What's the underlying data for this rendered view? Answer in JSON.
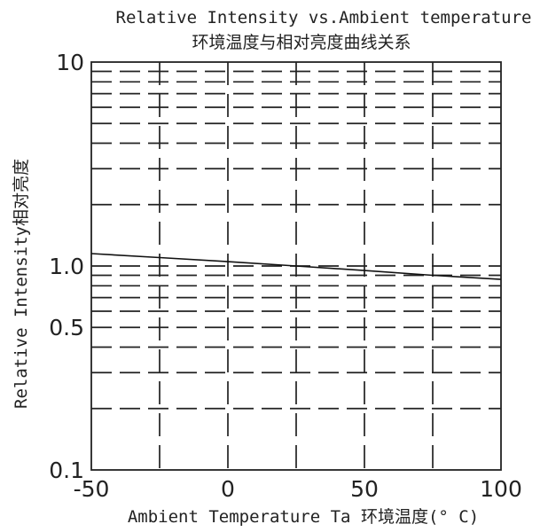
{
  "chart_data": {
    "type": "line",
    "title": "Relative Intensity vs.Ambient temperature",
    "subtitle": "环境温度与相对亮度曲线关系",
    "xlabel": "Ambient Temperature Ta 环境温度(° C)",
    "ylabel": "Relative Intensity相对亮度",
    "x_scale": "linear",
    "y_scale": "log",
    "xlim": [
      -50,
      100
    ],
    "ylim": [
      0.1,
      10
    ],
    "x_ticks": [
      -50,
      0,
      50,
      100
    ],
    "x_tick_labels": [
      "-50",
      "0",
      "50",
      "100"
    ],
    "y_ticks": [
      0.1,
      0.5,
      1.0,
      10
    ],
    "y_tick_labels": [
      "0.1",
      "0.5",
      "1.0",
      "10"
    ],
    "x_grid": [
      -25,
      0,
      25,
      50,
      75
    ],
    "y_grid": [
      0.2,
      0.3,
      0.4,
      0.5,
      0.6,
      0.7,
      0.8,
      0.9,
      1.0,
      2,
      3,
      4,
      5,
      6,
      7,
      8,
      9
    ],
    "grid": true,
    "grid_style": "dashed",
    "series": [
      {
        "x": [
          -50,
          -25,
          0,
          25,
          50,
          75,
          100
        ],
        "y": [
          1.15,
          1.1,
          1.05,
          1.0,
          0.95,
          0.9,
          0.86
        ]
      }
    ]
  }
}
